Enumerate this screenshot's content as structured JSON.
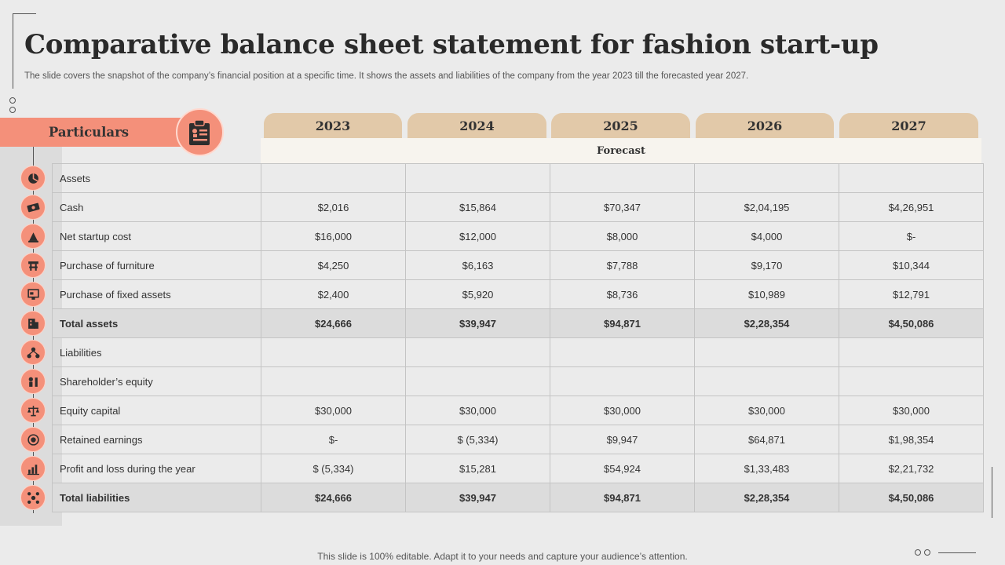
{
  "title": "Comparative balance sheet statement for fashion start-up",
  "subtitle": "The slide covers the snapshot of the company’s financial position at a specific time. It shows the assets and liabilities of the company from the year 2023 till the forecasted year 2027.",
  "particulars_label": "Particulars",
  "forecast_label": "Forecast",
  "years": [
    "2023",
    "2024",
    "2025",
    "2026",
    "2027"
  ],
  "rows": [
    {
      "label": "Assets",
      "icon": "assets-icon",
      "values": [
        "",
        "",
        "",
        "",
        ""
      ],
      "total": false
    },
    {
      "label": "Cash",
      "icon": "cash-icon",
      "values": [
        "$2,016",
        "$15,864",
        "$70,347",
        "$2,04,195",
        "$4,26,951"
      ],
      "total": false
    },
    {
      "label": "Net startup cost",
      "icon": "startup-rocket-icon",
      "values": [
        "$16,000",
        "$12,000",
        "$8,000",
        "$4,000",
        "$-"
      ],
      "total": false
    },
    {
      "label": "Purchase of furniture",
      "icon": "furniture-icon",
      "values": [
        "$4,250",
        "$6,163",
        "$7,788",
        "$9,170",
        "$10,344"
      ],
      "total": false
    },
    {
      "label": "Purchase of fixed assets",
      "icon": "fixed-assets-icon",
      "values": [
        "$2,400",
        "$5,920",
        "$8,736",
        "$10,989",
        "$12,791"
      ],
      "total": false
    },
    {
      "label": "Total assets",
      "icon": "total-assets-icon",
      "values": [
        "$24,666",
        "$39,947",
        "$94,871",
        "$2,28,354",
        "$4,50,086"
      ],
      "total": true
    },
    {
      "label": "Liabilities",
      "icon": "liabilities-icon",
      "values": [
        "",
        "",
        "",
        "",
        ""
      ],
      "total": false
    },
    {
      "label": "Shareholder’s equity",
      "icon": "shareholder-icon",
      "values": [
        "",
        "",
        "",
        "",
        ""
      ],
      "total": false
    },
    {
      "label": "Equity capital",
      "icon": "scale-icon",
      "values": [
        "$30,000",
        "$30,000",
        "$30,000",
        "$30,000",
        "$30,000"
      ],
      "total": false
    },
    {
      "label": "Retained earnings",
      "icon": "earnings-icon",
      "values": [
        "$-",
        "$ (5,334)",
        "$9,947",
        "$64,871",
        "$1,98,354"
      ],
      "total": false
    },
    {
      "label": "Profit and loss during the year",
      "icon": "profit-chart-icon",
      "values": [
        "$ (5,334)",
        "$15,281",
        "$54,924",
        "$1,33,483",
        "$2,21,732"
      ],
      "total": false
    },
    {
      "label": "Total liabilities",
      "icon": "total-liabilities-icon",
      "values": [
        "$24,666",
        "$39,947",
        "$94,871",
        "$2,28,354",
        "$4,50,086"
      ],
      "total": true
    }
  ],
  "footer": "This slide is 100% editable. Adapt it to your needs and capture your audience’s attention.",
  "colors": {
    "accent": "#f4907a",
    "tab": "#e2c9a9",
    "forecast_band": "#f7f4ee",
    "total_row": "#dcdcdc"
  }
}
